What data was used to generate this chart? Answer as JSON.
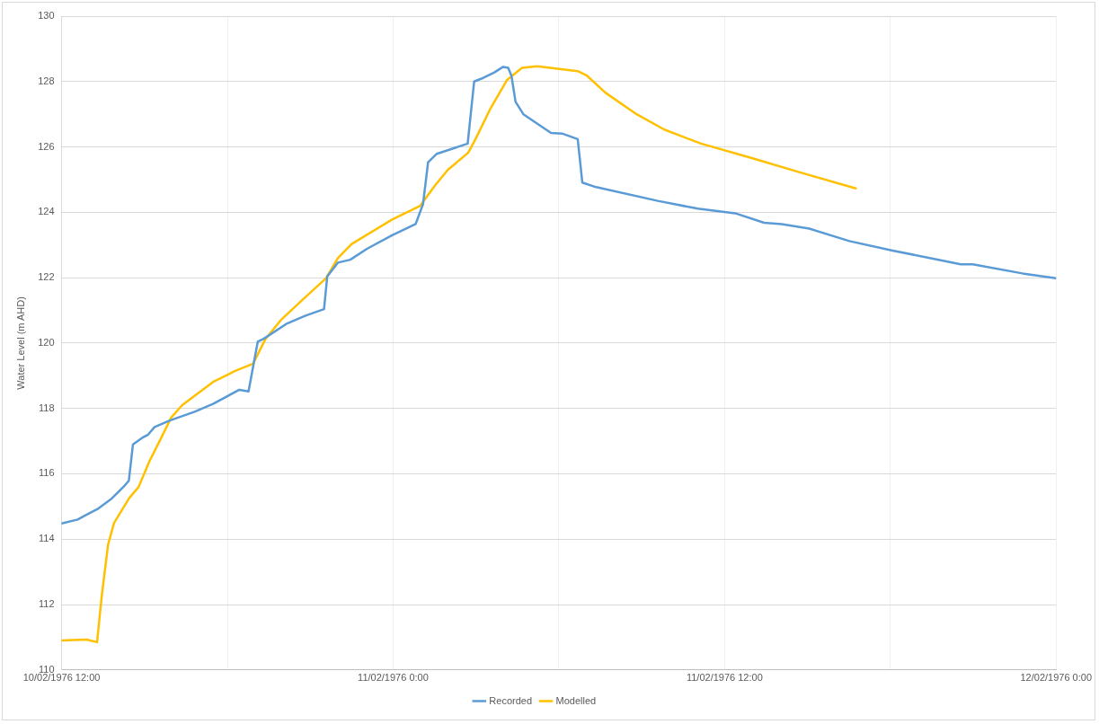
{
  "chart_data": {
    "type": "line",
    "ylabel": "Water Level (m AHD)",
    "xlim": [
      "1976-02-10T12:00",
      "1976-02-12T00:00"
    ],
    "xticks": [
      {
        "value": "1976-02-10T12:00",
        "label": "10/02/1976 12:00"
      },
      {
        "value": "1976-02-10T18:00",
        "label": null
      },
      {
        "value": "1976-02-11T00:00",
        "label": "11/02/1976 0:00"
      },
      {
        "value": "1976-02-11T06:00",
        "label": null
      },
      {
        "value": "1976-02-11T12:00",
        "label": "11/02/1976 12:00"
      },
      {
        "value": "1976-02-11T18:00",
        "label": null
      },
      {
        "value": "1976-02-12T00:00",
        "label": "12/02/1976 0:00"
      }
    ],
    "ylim": [
      110,
      130
    ],
    "yticks": [
      110,
      112,
      114,
      116,
      118,
      120,
      122,
      124,
      126,
      128,
      130
    ],
    "grid": true,
    "legend": "bottom",
    "marker": "none",
    "line_style": "solid",
    "series": [
      {
        "name": "Recorded",
        "color": "#5b9bd5",
        "x": [
          "1976-02-10T12:00",
          "1976-02-10T12:35",
          "1976-02-10T12:50",
          "1976-02-10T13:20",
          "1976-02-10T13:47",
          "1976-02-10T14:17",
          "1976-02-10T14:26",
          "1976-02-10T14:35",
          "1976-02-10T14:55",
          "1976-02-10T15:08",
          "1976-02-10T15:22",
          "1976-02-10T15:55",
          "1976-02-10T16:49",
          "1976-02-10T17:29",
          "1976-02-10T18:26",
          "1976-02-10T18:46",
          "1976-02-10T19:06",
          "1976-02-10T19:19",
          "1976-02-10T20:10",
          "1976-02-10T20:50",
          "1976-02-10T21:30",
          "1976-02-10T21:37",
          "1976-02-10T22:00",
          "1976-02-10T22:27",
          "1976-02-10T23:04",
          "1976-02-10T23:58",
          "1976-02-11T00:49",
          "1976-02-11T01:05",
          "1976-02-11T01:16",
          "1976-02-11T01:35",
          "1976-02-11T02:42",
          "1976-02-11T02:56",
          "1976-02-11T03:12",
          "1976-02-11T03:40",
          "1976-02-11T03:59",
          "1976-02-11T04:10",
          "1976-02-11T04:17",
          "1976-02-11T04:26",
          "1976-02-11T04:43",
          "1976-02-11T05:43",
          "1976-02-11T06:07",
          "1976-02-11T06:41",
          "1976-02-11T06:51",
          "1976-02-11T07:21",
          "1976-02-11T09:35",
          "1976-02-11T11:02",
          "1976-02-11T12:23",
          "1976-02-11T13:26",
          "1976-02-11T14:04",
          "1976-02-11T15:04",
          "1976-02-11T16:31",
          "1976-02-11T18:05",
          "1976-02-11T20:33",
          "1976-02-11T20:59",
          "1976-02-11T22:47",
          "1976-02-12T00:00"
        ],
        "values": [
          114.48,
          114.6,
          114.72,
          114.94,
          115.22,
          115.64,
          115.79,
          116.9,
          117.1,
          117.2,
          117.43,
          117.63,
          117.9,
          118.14,
          118.57,
          118.52,
          120.04,
          120.13,
          120.6,
          120.84,
          121.04,
          122.04,
          122.46,
          122.55,
          122.89,
          123.3,
          123.64,
          124.25,
          125.53,
          125.79,
          126.1,
          128.0,
          128.09,
          128.28,
          128.45,
          128.42,
          128.18,
          127.38,
          127.0,
          126.43,
          126.41,
          126.24,
          124.91,
          124.77,
          124.35,
          124.11,
          123.97,
          123.68,
          123.64,
          123.5,
          123.12,
          122.83,
          122.41,
          122.41,
          122.13,
          121.98
        ]
      },
      {
        "name": "Modelled",
        "color": "#ffc000",
        "x": [
          "1976-02-10T12:00",
          "1976-02-10T12:54",
          "1976-02-10T13:17",
          "1976-02-10T13:27",
          "1976-02-10T13:41",
          "1976-02-10T13:54",
          "1976-02-10T14:27",
          "1976-02-10T14:47",
          "1976-02-10T15:11",
          "1976-02-10T15:35",
          "1976-02-10T15:58",
          "1976-02-10T16:22",
          "1976-02-10T17:29",
          "1976-02-10T18:16",
          "1976-02-10T18:56",
          "1976-02-10T19:23",
          "1976-02-10T19:56",
          "1976-02-10T20:43",
          "1976-02-10T21:34",
          "1976-02-10T22:00",
          "1976-02-10T22:30",
          "1976-02-10T23:58",
          "1976-02-11T00:59",
          "1976-02-11T01:31",
          "1976-02-11T01:59",
          "1976-02-11T02:43",
          "1976-02-11T02:59",
          "1976-02-11T03:32",
          "1976-02-11T04:07",
          "1976-02-11T04:40",
          "1976-02-11T05:13",
          "1976-02-11T06:41",
          "1976-02-11T07:01",
          "1976-02-11T07:41",
          "1976-02-11T08:49",
          "1976-02-11T09:49",
          "1976-02-11T11:09",
          "1976-02-11T12:56",
          "1976-02-11T14:37",
          "1976-02-11T16:45"
        ],
        "values": [
          110.9,
          110.93,
          110.85,
          112.24,
          113.84,
          114.5,
          115.26,
          115.59,
          116.39,
          117.06,
          117.72,
          118.1,
          118.81,
          119.14,
          119.37,
          120.13,
          120.7,
          121.32,
          121.98,
          122.6,
          123.03,
          123.78,
          124.2,
          124.82,
          125.3,
          125.82,
          126.24,
          127.19,
          128.04,
          128.42,
          128.47,
          128.32,
          128.18,
          127.66,
          127.0,
          126.53,
          126.1,
          125.67,
          125.25,
          124.73
        ]
      }
    ]
  }
}
